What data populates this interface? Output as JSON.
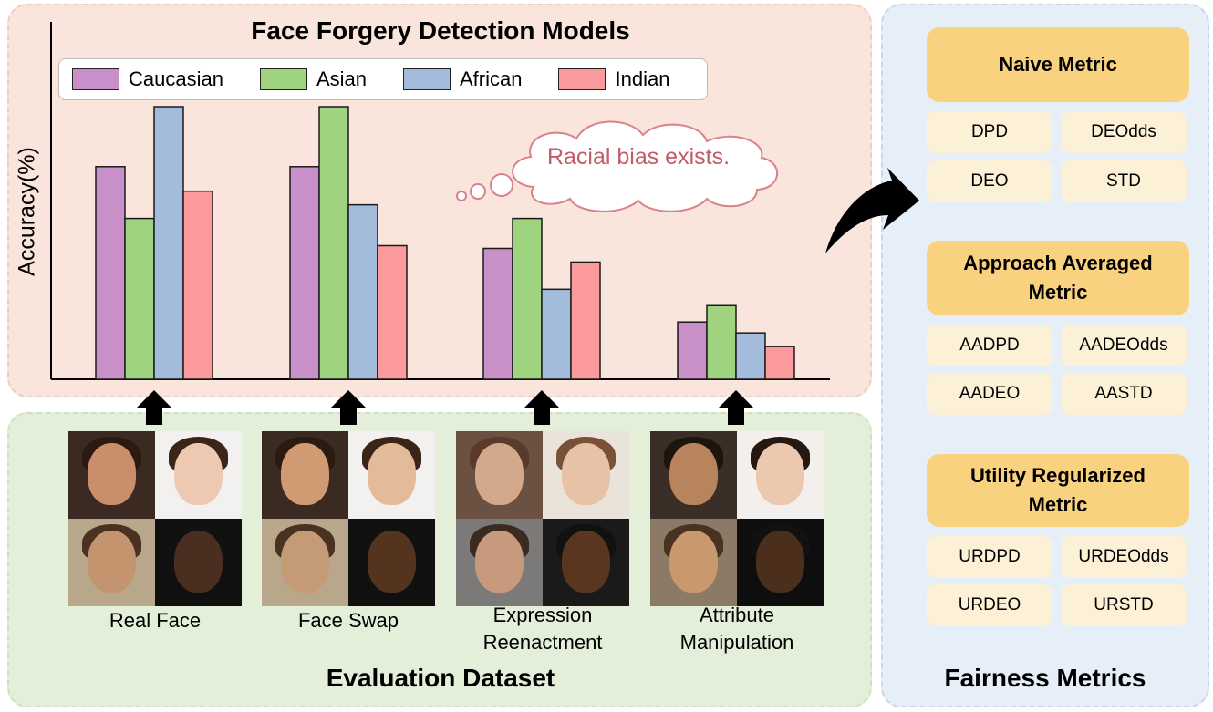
{
  "chart": {
    "title": "Face Forgery Detection Models",
    "ylabel": "Accuracy(%)",
    "annotation": "Racial bias exists."
  },
  "chart_data": {
    "type": "bar",
    "title": "Face Forgery Detection Models",
    "xlabel": "",
    "ylabel": "Accuracy(%)",
    "ylim": [
      0,
      100
    ],
    "grid": false,
    "legend": "top",
    "categories": [
      "Real Face",
      "Face Swap",
      "Expression Reenactment",
      "Attribute Manipulation"
    ],
    "series": [
      {
        "name": "Caucasian",
        "color": "#c88fc9",
        "values": [
          78,
          78,
          48,
          21
        ]
      },
      {
        "name": "Asian",
        "color": "#9fd37f",
        "values": [
          59,
          100,
          59,
          27
        ]
      },
      {
        "name": "African",
        "color": "#a4bcdc",
        "values": [
          100,
          64,
          33,
          17
        ]
      },
      {
        "name": "Indian",
        "color": "#fb9a9c",
        "values": [
          69,
          49,
          43,
          12
        ]
      }
    ]
  },
  "dataset": {
    "title": "Evaluation Dataset",
    "groups": [
      {
        "label1": "Real Face",
        "label2": ""
      },
      {
        "label1": "Face Swap",
        "label2": ""
      },
      {
        "label1": "Expression",
        "label2": "Reenactment"
      },
      {
        "label1": "Attribute",
        "label2": "Manipulation"
      }
    ]
  },
  "metrics": {
    "title": "Fairness Metrics",
    "groups": [
      {
        "line1": "Naive Metric",
        "line2": "",
        "items": [
          "DPD",
          "DEOdds",
          "DEO",
          "STD"
        ]
      },
      {
        "line1": "Approach Averaged",
        "line2": "Metric",
        "items": [
          "AADPD",
          "AADEOdds",
          "AADEO",
          "AASTD"
        ]
      },
      {
        "line1": "Utility Regularized",
        "line2": "Metric",
        "items": [
          "URDPD",
          "URDEOdds",
          "URDEO",
          "URSTD"
        ]
      }
    ]
  }
}
